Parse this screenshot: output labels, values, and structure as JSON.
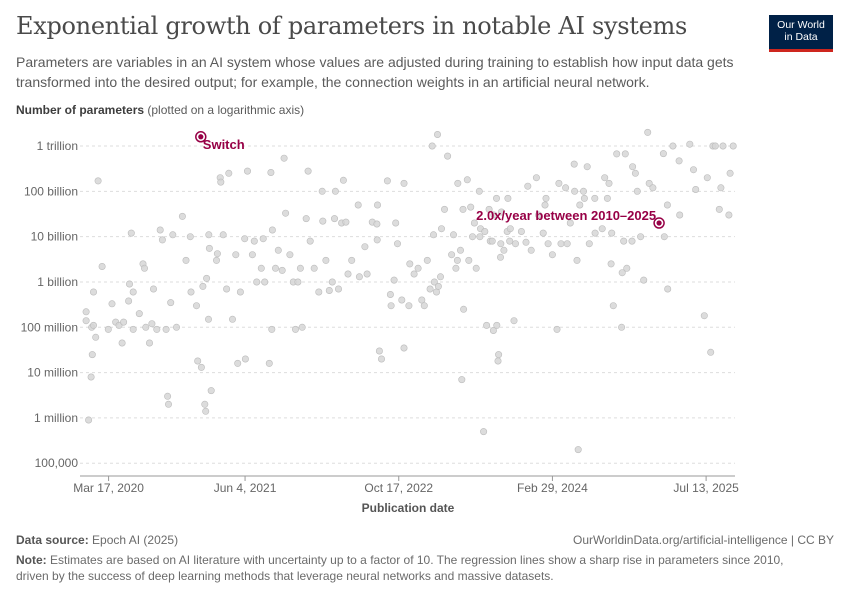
{
  "header": {
    "title": "Exponential growth of parameters in notable AI systems",
    "subtitle": "Parameters are variables in an AI system whose values are adjusted during training to establish how input data gets transformed into the desired output; for example, the connection weights in an artificial neural network."
  },
  "logo": {
    "line1": "Our World",
    "line2": "in Data"
  },
  "chart_data": {
    "type": "scatter",
    "ylabel_bold": "Number of parameters",
    "ylabel_note": "(plotted on a logarithmic axis)",
    "xlabel": "Publication date",
    "y_scale": "log",
    "x_ticks": [
      "Mar 17, 2020",
      "Jun 4, 2021",
      "Oct 17, 2022",
      "Feb 29, 2024",
      "Jul 13, 2025"
    ],
    "x_tick_dates": [
      "2020-03-17",
      "2021-06-04",
      "2022-10-17",
      "2024-02-29",
      "2025-07-13"
    ],
    "y_ticks": [
      {
        "label": "100,000",
        "value": 100000
      },
      {
        "label": "1 million",
        "value": 1000000
      },
      {
        "label": "10 million",
        "value": 10000000
      },
      {
        "label": "100 million",
        "value": 100000000
      },
      {
        "label": "1 billion",
        "value": 1000000000
      },
      {
        "label": "10 billion",
        "value": 10000000000
      },
      {
        "label": "100 billion",
        "value": 100000000000
      },
      {
        "label": "1 trillion",
        "value": 1000000000000
      }
    ],
    "xlim": [
      "2019-12-15",
      "2025-10-15"
    ],
    "ylim": [
      55000,
      2500000000000
    ],
    "grid": "horizontal dashed",
    "highlighted": [
      {
        "name": "Switch",
        "date": "2021-01-11",
        "value": 1600000000000
      },
      {
        "name": "2.0x/year between 2010–2025",
        "date": "2025-02-10",
        "value": 20000000000
      }
    ],
    "points": [
      [
        "2020-01-04",
        220000000
      ],
      [
        "2020-01-04",
        140000000
      ],
      [
        "2020-01-12",
        900000
      ],
      [
        "2020-01-20",
        8000000
      ],
      [
        "2020-01-22",
        100000000
      ],
      [
        "2020-01-24",
        25000000
      ],
      [
        "2020-01-28",
        600000000
      ],
      [
        "2020-01-28",
        110000000
      ],
      [
        "2020-02-04",
        60000000
      ],
      [
        "2020-02-12",
        170000000000
      ],
      [
        "2020-02-25",
        2200000000
      ],
      [
        "2020-03-16",
        90000000
      ],
      [
        "2020-03-28",
        330000000
      ],
      [
        "2020-04-09",
        130000000
      ],
      [
        "2020-04-20",
        110000000
      ],
      [
        "2020-04-30",
        45000000
      ],
      [
        "2020-05-05",
        130000000
      ],
      [
        "2020-05-21",
        380000000
      ],
      [
        "2020-05-24",
        900000000
      ],
      [
        "2020-05-30",
        12000000000
      ],
      [
        "2020-06-05",
        90000000
      ],
      [
        "2020-06-05",
        600000000
      ],
      [
        "2020-06-25",
        200000000
      ],
      [
        "2020-07-07",
        2500000000
      ],
      [
        "2020-07-12",
        2000000000
      ],
      [
        "2020-07-16",
        100000000
      ],
      [
        "2020-07-28",
        45000000
      ],
      [
        "2020-08-05",
        120000000
      ],
      [
        "2020-08-10",
        700000000
      ],
      [
        "2020-08-21",
        90000000
      ],
      [
        "2020-09-01",
        14000000000
      ],
      [
        "2020-09-08",
        8500000000
      ],
      [
        "2020-09-20",
        90000000
      ],
      [
        "2020-09-25",
        3000000
      ],
      [
        "2020-09-28",
        2000000
      ],
      [
        "2020-10-05",
        350000000
      ],
      [
        "2020-10-12",
        11000000000
      ],
      [
        "2020-10-24",
        100000000
      ],
      [
        "2020-11-12",
        28000000000
      ],
      [
        "2020-11-24",
        3000000000
      ],
      [
        "2020-12-08",
        10000000000
      ],
      [
        "2020-12-10",
        600000000
      ],
      [
        "2020-12-28",
        300000000
      ],
      [
        "2021-01-01",
        18000000
      ],
      [
        "2021-01-13",
        13000000
      ],
      [
        "2021-01-18",
        800000000
      ],
      [
        "2021-01-24",
        2000000
      ],
      [
        "2021-01-27",
        1400000
      ],
      [
        "2021-01-30",
        1200000000
      ],
      [
        "2021-02-05",
        150000000
      ],
      [
        "2021-02-06",
        11000000000
      ],
      [
        "2021-02-08",
        5500000000
      ],
      [
        "2021-02-14",
        4000000
      ],
      [
        "2021-03-03",
        3000000000
      ],
      [
        "2021-03-06",
        4200000000
      ],
      [
        "2021-03-15",
        200000000000
      ],
      [
        "2021-03-17",
        160000000000
      ],
      [
        "2021-03-25",
        11000000000
      ],
      [
        "2021-04-05",
        700000000
      ],
      [
        "2021-04-12",
        250000000000
      ],
      [
        "2021-04-24",
        150000000
      ],
      [
        "2021-05-05",
        4000000000
      ],
      [
        "2021-05-11",
        16000000
      ],
      [
        "2021-05-20",
        600000000
      ],
      [
        "2021-06-03",
        9000000000
      ],
      [
        "2021-06-05",
        20000000
      ],
      [
        "2021-06-12",
        280000000000
      ],
      [
        "2021-06-28",
        4000000000
      ],
      [
        "2021-07-04",
        8000000000
      ],
      [
        "2021-07-12",
        1000000000
      ],
      [
        "2021-07-27",
        2000000000
      ],
      [
        "2021-08-02",
        9000000000
      ],
      [
        "2021-08-07",
        1000000000
      ],
      [
        "2021-08-22",
        16000000
      ],
      [
        "2021-08-27",
        260000000000
      ],
      [
        "2021-08-30",
        90000000
      ],
      [
        "2021-09-01",
        14000000000
      ],
      [
        "2021-09-11",
        2000000000
      ],
      [
        "2021-09-20",
        5000000000
      ],
      [
        "2021-10-03",
        1800000000
      ],
      [
        "2021-10-09",
        540000000000
      ],
      [
        "2021-10-14",
        33000000000
      ],
      [
        "2021-10-28",
        4000000000
      ],
      [
        "2021-11-08",
        1000000000
      ],
      [
        "2021-11-15",
        90000000
      ],
      [
        "2021-11-23",
        1000000000
      ],
      [
        "2021-12-01",
        2000000000
      ],
      [
        "2021-12-07",
        100000000
      ],
      [
        "2021-12-20",
        25000000000
      ],
      [
        "2021-12-26",
        280000000000
      ],
      [
        "2022-01-02",
        8000000000
      ],
      [
        "2022-01-15",
        2000000000
      ],
      [
        "2022-01-30",
        600000000
      ],
      [
        "2022-02-10",
        100000000000
      ],
      [
        "2022-02-12",
        22000000000
      ],
      [
        "2022-02-22",
        3000000000
      ],
      [
        "2022-03-05",
        650000000
      ],
      [
        "2022-03-15",
        1000000000
      ],
      [
        "2022-03-22",
        25000000000
      ],
      [
        "2022-03-25",
        100000000000
      ],
      [
        "2022-04-04",
        700000000
      ],
      [
        "2022-04-14",
        20000000000
      ],
      [
        "2022-04-20",
        175000000000
      ],
      [
        "2022-04-28",
        21000000000
      ],
      [
        "2022-05-05",
        1500000000
      ],
      [
        "2022-05-17",
        3000000000
      ],
      [
        "2022-06-07",
        50000000000
      ],
      [
        "2022-06-11",
        1300000000
      ],
      [
        "2022-06-29",
        6000000000
      ],
      [
        "2022-07-06",
        1500000000
      ],
      [
        "2022-07-23",
        21000000000
      ],
      [
        "2022-08-07",
        19000000000
      ],
      [
        "2022-08-08",
        8500000000
      ],
      [
        "2022-08-09",
        50000000000
      ],
      [
        "2022-08-15",
        30000000
      ],
      [
        "2022-08-22",
        20000000
      ],
      [
        "2022-09-10",
        170000000000
      ],
      [
        "2022-09-20",
        530000000
      ],
      [
        "2022-09-22",
        300000000
      ],
      [
        "2022-10-02",
        1100000000
      ],
      [
        "2022-10-07",
        20000000000
      ],
      [
        "2022-10-13",
        7000000000
      ],
      [
        "2022-10-27",
        400000000
      ],
      [
        "2022-11-03",
        150000000000
      ],
      [
        "2022-11-03",
        35000000
      ],
      [
        "2022-11-19",
        300000000
      ],
      [
        "2022-11-22",
        2500000000
      ],
      [
        "2022-12-06",
        1500000000
      ],
      [
        "2022-12-19",
        2000000000
      ],
      [
        "2022-12-31",
        400000000
      ],
      [
        "2023-01-08",
        300000000
      ],
      [
        "2023-01-18",
        3000000000
      ],
      [
        "2023-01-27",
        700000000
      ],
      [
        "2023-02-03",
        1000000000000
      ],
      [
        "2023-02-07",
        11000000000
      ],
      [
        "2023-02-10",
        1000000000
      ],
      [
        "2023-02-17",
        600000000
      ],
      [
        "2023-02-20",
        1800000000000
      ],
      [
        "2023-02-23",
        800000000
      ],
      [
        "2023-03-02",
        1300000000
      ],
      [
        "2023-03-05",
        15000000000
      ],
      [
        "2023-03-15",
        40000000000
      ],
      [
        "2023-03-25",
        600000000000
      ],
      [
        "2023-04-07",
        4000000000
      ],
      [
        "2023-04-13",
        11000000000
      ],
      [
        "2023-04-21",
        2000000000
      ],
      [
        "2023-04-26",
        3000000000
      ],
      [
        "2023-04-27",
        150000000000
      ],
      [
        "2023-05-06",
        5000000000
      ],
      [
        "2023-05-10",
        7000000
      ],
      [
        "2023-05-14",
        40000000000
      ],
      [
        "2023-05-16",
        250000000
      ],
      [
        "2023-05-28",
        180000000000
      ],
      [
        "2023-06-02",
        3000000000
      ],
      [
        "2023-06-08",
        45000000000
      ],
      [
        "2023-06-14",
        10000000000
      ],
      [
        "2023-06-20",
        20000000000
      ],
      [
        "2023-06-26",
        2000000000
      ],
      [
        "2023-07-06",
        100000000000
      ],
      [
        "2023-07-08",
        10000000000
      ],
      [
        "2023-07-10",
        15000000000
      ],
      [
        "2023-07-20",
        500000
      ],
      [
        "2023-07-24",
        13000000000
      ],
      [
        "2023-07-30",
        110000000
      ],
      [
        "2023-08-07",
        40000000000
      ],
      [
        "2023-08-11",
        8000000000
      ],
      [
        "2023-08-17",
        8000000000
      ],
      [
        "2023-08-21",
        85000000
      ],
      [
        "2023-08-23",
        30000000000
      ],
      [
        "2023-08-31",
        70000000000
      ],
      [
        "2023-09-01",
        110000000
      ],
      [
        "2023-09-05",
        18000000
      ],
      [
        "2023-09-07",
        25000000
      ],
      [
        "2023-09-13",
        3500000000
      ],
      [
        "2023-09-14",
        7000000000
      ],
      [
        "2023-09-16",
        35000000000
      ],
      [
        "2023-09-24",
        5000000000
      ],
      [
        "2023-10-05",
        13000000000
      ],
      [
        "2023-10-07",
        70000000000
      ],
      [
        "2023-10-13",
        8000000000
      ],
      [
        "2023-10-15",
        15000000000
      ],
      [
        "2023-10-27",
        140000000
      ],
      [
        "2023-11-01",
        7000000000
      ],
      [
        "2023-11-20",
        13000000000
      ],
      [
        "2023-12-05",
        7500000000
      ],
      [
        "2023-12-11",
        130000000000
      ],
      [
        "2023-12-22",
        5000000000
      ],
      [
        "2024-01-08",
        200000000000
      ],
      [
        "2024-01-15",
        30000000000
      ],
      [
        "2024-01-30",
        12000000000
      ],
      [
        "2024-02-05",
        50000000000
      ],
      [
        "2024-02-08",
        70000000000
      ],
      [
        "2024-02-15",
        7000000000
      ],
      [
        "2024-02-29",
        4000000000
      ],
      [
        "2024-03-15",
        90000000
      ],
      [
        "2024-03-21",
        150000000000
      ],
      [
        "2024-03-28",
        7000000000
      ],
      [
        "2024-04-12",
        120000000000
      ],
      [
        "2024-04-17",
        7000000000
      ],
      [
        "2024-04-27",
        20000000000
      ],
      [
        "2024-05-10",
        400000000000
      ],
      [
        "2024-05-11",
        100000000000
      ],
      [
        "2024-05-19",
        3000000000
      ],
      [
        "2024-05-23",
        200000
      ],
      [
        "2024-05-28",
        50000000000
      ],
      [
        "2024-06-09",
        100000000000
      ],
      [
        "2024-06-12",
        70000000000
      ],
      [
        "2024-06-21",
        350000000000
      ],
      [
        "2024-06-28",
        7000000000
      ],
      [
        "2024-07-16",
        70000000000
      ],
      [
        "2024-07-17",
        12000000000
      ],
      [
        "2024-08-09",
        15000000000
      ],
      [
        "2024-08-17",
        200000000000
      ],
      [
        "2024-08-26",
        70000000000
      ],
      [
        "2024-08-31",
        150000000000
      ],
      [
        "2024-09-07",
        2500000000
      ],
      [
        "2024-09-09",
        12000000000
      ],
      [
        "2024-09-14",
        300000000
      ],
      [
        "2024-09-25",
        670000000000
      ],
      [
        "2024-10-11",
        100000000
      ],
      [
        "2024-10-13",
        1600000000
      ],
      [
        "2024-10-18",
        8000000000
      ],
      [
        "2024-10-23",
        670000000000
      ],
      [
        "2024-10-28",
        2000000000
      ],
      [
        "2024-11-14",
        8000000000
      ],
      [
        "2024-11-16",
        350000000000
      ],
      [
        "2024-11-25",
        250000000000
      ],
      [
        "2024-12-01",
        100000000000
      ],
      [
        "2024-12-12",
        10000000000
      ],
      [
        "2024-12-22",
        1100000000
      ],
      [
        "2025-01-04",
        2000000000000
      ],
      [
        "2025-01-09",
        150000000000
      ],
      [
        "2025-01-21",
        120000000000
      ],
      [
        "2025-02-24",
        680000000000
      ],
      [
        "2025-02-27",
        10000000000
      ],
      [
        "2025-03-09",
        50000000000
      ],
      [
        "2025-03-10",
        700000000
      ],
      [
        "2025-03-27",
        1000000000000
      ],
      [
        "2025-04-16",
        470000000000
      ],
      [
        "2025-04-18",
        30000000000
      ],
      [
        "2025-05-21",
        1100000000000
      ],
      [
        "2025-06-02",
        300000000000
      ],
      [
        "2025-06-09",
        110000000000
      ],
      [
        "2025-07-07",
        180000000
      ],
      [
        "2025-07-17",
        200000000000
      ],
      [
        "2025-07-28",
        28000000
      ],
      [
        "2025-08-04",
        1000000000000
      ],
      [
        "2025-08-12",
        1000000000000
      ],
      [
        "2025-08-25",
        40000000000
      ],
      [
        "2025-08-30",
        120000000000
      ],
      [
        "2025-09-06",
        1000000000000
      ],
      [
        "2025-09-25",
        30000000000
      ],
      [
        "2025-09-29",
        250000000000
      ],
      [
        "2025-10-09",
        1000000000000
      ]
    ]
  },
  "footer": {
    "source_label": "Data source:",
    "source_text": "Epoch AI (2025)",
    "url": "OurWorldinData.org/artificial-intelligence | CC BY",
    "note_label": "Note:",
    "note_text": "Estimates are based on AI literature with uncertainty up to a factor of 10. The regression lines show a sharp rise in parameters since 2010, driven by the success of deep learning methods that leverage neural networks and massive datasets."
  },
  "colors": {
    "highlight": "#970046",
    "point": "#d6d6d6",
    "point_stroke": "#bcbcbc",
    "grid": "#dddddd",
    "logo_bg": "#002147",
    "logo_bar": "#ce261e"
  }
}
